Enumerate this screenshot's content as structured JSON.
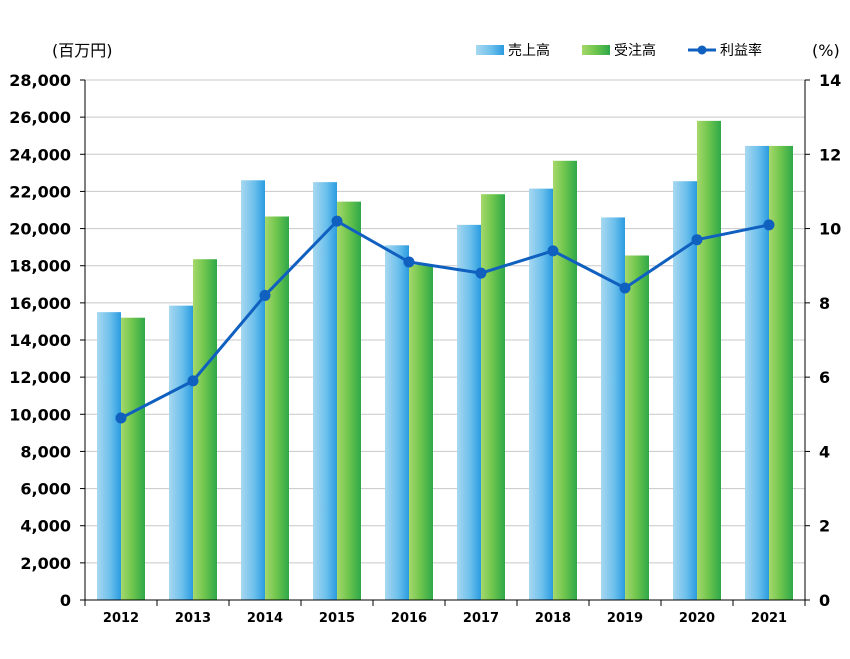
{
  "chart_data": {
    "type": "bar",
    "categories": [
      "2012",
      "2013",
      "2014",
      "2015",
      "2016",
      "2017",
      "2018",
      "2019",
      "2020",
      "2021"
    ],
    "series": [
      {
        "name": "売上高",
        "kind": "bar",
        "axis": "left",
        "color": "#5bb8e8",
        "values": [
          15500,
          15850,
          22600,
          22500,
          19100,
          20200,
          22150,
          20600,
          22550,
          24450
        ]
      },
      {
        "name": "受注高",
        "kind": "bar",
        "axis": "left",
        "color": "#4cb84c",
        "values": [
          15200,
          18350,
          20650,
          21450,
          18050,
          21850,
          23650,
          18550,
          25800,
          24450
        ]
      },
      {
        "name": "利益率",
        "kind": "line",
        "axis": "right",
        "color": "#1060c0",
        "values": [
          4.9,
          5.9,
          8.2,
          10.2,
          9.1,
          8.8,
          9.4,
          8.4,
          9.7,
          10.1
        ]
      }
    ],
    "y_left": {
      "unit": "(百万円)",
      "ylim": [
        0,
        28000
      ],
      "ticks": [
        0,
        2000,
        4000,
        6000,
        8000,
        10000,
        12000,
        14000,
        16000,
        18000,
        20000,
        22000,
        24000,
        26000,
        28000
      ],
      "tick_labels": [
        "0",
        "2,000",
        "4,000",
        "6,000",
        "8,000",
        "10,000",
        "12,000",
        "14,000",
        "16,000",
        "18,000",
        "20,000",
        "22,000",
        "24,000",
        "26,000",
        "28,000"
      ]
    },
    "y_right": {
      "unit": "(%)",
      "ylim": [
        0,
        14
      ],
      "ticks": [
        0,
        2,
        4,
        6,
        8,
        10,
        12,
        14
      ],
      "tick_labels": [
        "0",
        "2",
        "4",
        "6",
        "8",
        "10",
        "12",
        "14"
      ]
    },
    "grid": true,
    "legend_position": "top-right"
  }
}
